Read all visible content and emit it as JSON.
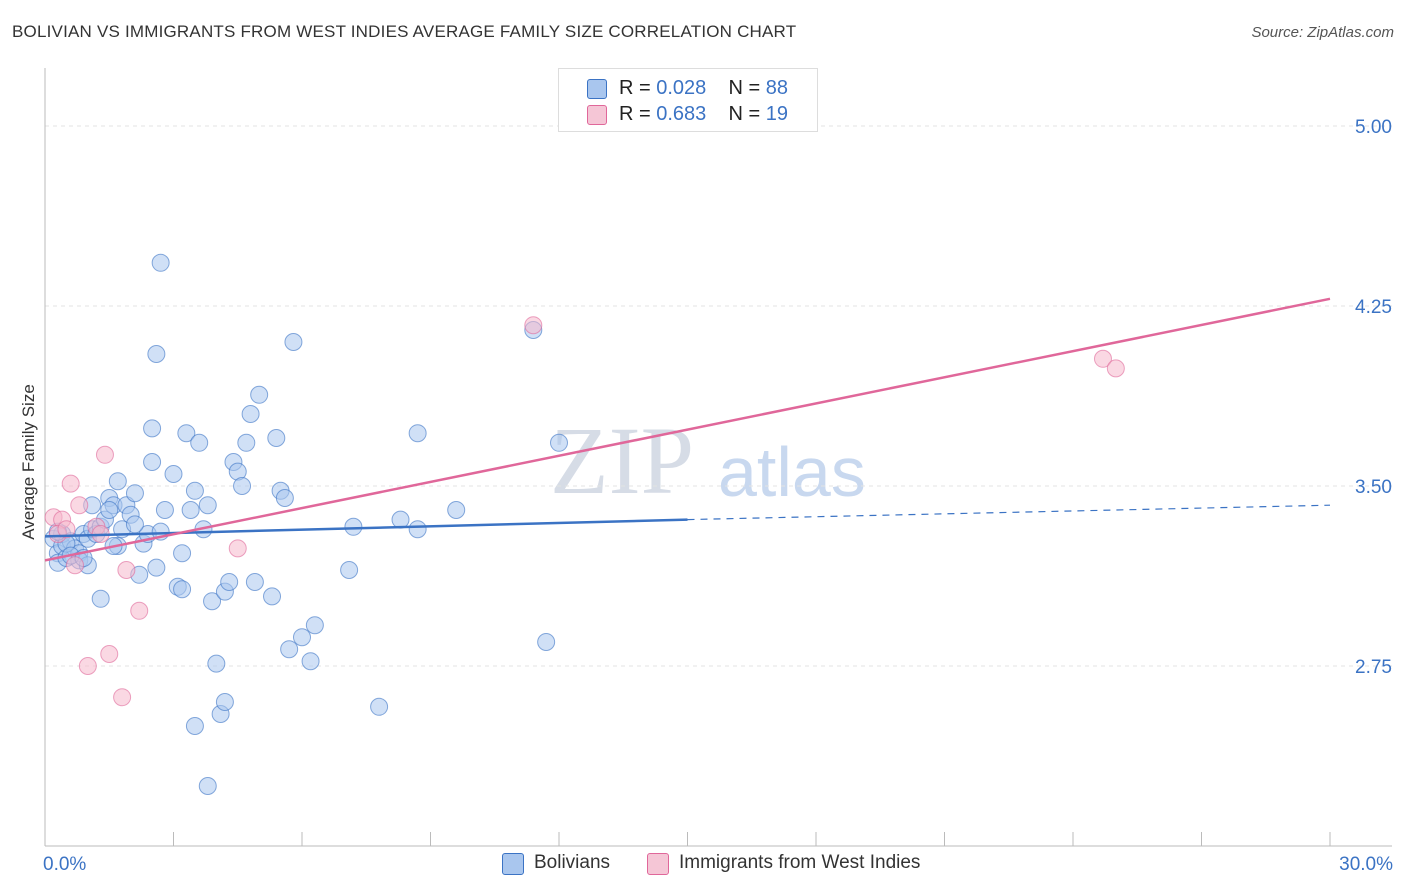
{
  "title": "BOLIVIAN VS IMMIGRANTS FROM WEST INDIES AVERAGE FAMILY SIZE CORRELATION CHART",
  "source": "Source: ZipAtlas.com",
  "watermark": {
    "zip": "ZIP",
    "atlas": "atlas"
  },
  "colors": {
    "blue": "#3b73c4",
    "blue_fill": "#a9c6ee",
    "pink": "#e0679a",
    "pink_fill": "#f5b8cc",
    "grid": "#e3e3e3"
  },
  "legend": {
    "rows": [
      {
        "r_label": "R =",
        "r_value": "0.028",
        "n_label": "N =",
        "n_value": "88"
      },
      {
        "r_label": "R =",
        "r_value": "0.683",
        "n_label": "N =",
        "n_value": "19"
      }
    ]
  },
  "bottom_legend": {
    "series1": "Bolivians",
    "series2": "Immigrants from West Indies"
  },
  "chart_data": {
    "type": "scatter",
    "ylabel": "Average Family Size",
    "xlabel": "",
    "xlim": [
      0,
      30
    ],
    "ylim": [
      2.0,
      5.2
    ],
    "x_tick_labels": {
      "left": "0.0%",
      "right": "30.0%"
    },
    "y_ticks": [
      {
        "value": 5.0,
        "label": "5.00"
      },
      {
        "value": 4.25,
        "label": "4.25"
      },
      {
        "value": 3.5,
        "label": "3.50"
      },
      {
        "value": 2.75,
        "label": "2.75"
      }
    ],
    "series": [
      {
        "name": "Bolivians",
        "points": [
          [
            0.2,
            3.28
          ],
          [
            0.3,
            3.22
          ],
          [
            0.4,
            3.25
          ],
          [
            0.3,
            3.18
          ],
          [
            0.5,
            3.2
          ],
          [
            0.4,
            3.3
          ],
          [
            0.6,
            3.27
          ],
          [
            0.7,
            3.24
          ],
          [
            0.8,
            3.22
          ],
          [
            0.5,
            3.26
          ],
          [
            0.9,
            3.3
          ],
          [
            1.0,
            3.28
          ],
          [
            1.1,
            3.32
          ],
          [
            0.8,
            3.19
          ],
          [
            1.2,
            3.3
          ],
          [
            1.0,
            3.17
          ],
          [
            1.1,
            3.42
          ],
          [
            1.3,
            3.33
          ],
          [
            1.4,
            3.36
          ],
          [
            1.5,
            3.45
          ],
          [
            1.6,
            3.42
          ],
          [
            1.7,
            3.52
          ],
          [
            1.8,
            3.32
          ],
          [
            1.7,
            3.25
          ],
          [
            1.9,
            3.42
          ],
          [
            2.0,
            3.38
          ],
          [
            2.1,
            3.47
          ],
          [
            2.2,
            3.13
          ],
          [
            2.3,
            3.26
          ],
          [
            2.4,
            3.3
          ],
          [
            2.5,
            3.6
          ],
          [
            2.6,
            3.16
          ],
          [
            2.7,
            3.31
          ],
          [
            2.8,
            3.4
          ],
          [
            3.0,
            3.55
          ],
          [
            3.1,
            3.08
          ],
          [
            3.2,
            3.07
          ],
          [
            3.2,
            3.22
          ],
          [
            3.3,
            3.72
          ],
          [
            3.4,
            3.4
          ],
          [
            3.5,
            3.48
          ],
          [
            3.6,
            3.68
          ],
          [
            3.7,
            3.32
          ],
          [
            3.8,
            3.42
          ],
          [
            3.9,
            3.02
          ],
          [
            4.0,
            2.76
          ],
          [
            4.2,
            3.06
          ],
          [
            4.3,
            3.1
          ],
          [
            4.4,
            3.6
          ],
          [
            4.5,
            3.56
          ],
          [
            4.6,
            3.5
          ],
          [
            4.7,
            3.68
          ],
          [
            4.8,
            3.8
          ],
          [
            4.9,
            3.1
          ],
          [
            5.0,
            3.88
          ],
          [
            5.3,
            3.04
          ],
          [
            5.4,
            3.7
          ],
          [
            5.5,
            3.48
          ],
          [
            5.6,
            3.45
          ],
          [
            5.7,
            2.82
          ],
          [
            6.0,
            2.87
          ],
          [
            6.2,
            2.77
          ],
          [
            6.3,
            2.92
          ],
          [
            7.2,
            3.33
          ],
          [
            7.1,
            3.15
          ],
          [
            7.8,
            2.58
          ],
          [
            8.3,
            3.36
          ],
          [
            8.7,
            3.72
          ],
          [
            8.7,
            3.32
          ],
          [
            9.6,
            3.4
          ],
          [
            12.0,
            3.68
          ],
          [
            11.7,
            2.85
          ],
          [
            2.5,
            3.74
          ],
          [
            2.6,
            4.05
          ],
          [
            2.7,
            4.43
          ],
          [
            3.5,
            2.5
          ],
          [
            3.8,
            2.25
          ],
          [
            4.1,
            2.55
          ],
          [
            4.2,
            2.6
          ],
          [
            5.8,
            4.1
          ],
          [
            11.4,
            4.15
          ],
          [
            1.3,
            3.03
          ],
          [
            1.6,
            3.25
          ],
          [
            0.6,
            3.21
          ],
          [
            0.3,
            3.31
          ],
          [
            0.9,
            3.2
          ],
          [
            2.1,
            3.34
          ],
          [
            1.5,
            3.4
          ]
        ],
        "trend": {
          "x0": 0.0,
          "y0": 3.29,
          "x1": 15.0,
          "y1": 3.36,
          "dash_to_x": 30.0,
          "dash_to_y": 3.42
        }
      },
      {
        "name": "Immigrants from West Indies",
        "points": [
          [
            0.2,
            3.37
          ],
          [
            0.4,
            3.36
          ],
          [
            0.3,
            3.3
          ],
          [
            0.6,
            3.51
          ],
          [
            0.7,
            3.17
          ],
          [
            0.8,
            3.42
          ],
          [
            1.0,
            2.75
          ],
          [
            1.2,
            3.33
          ],
          [
            1.4,
            3.63
          ],
          [
            1.5,
            2.8
          ],
          [
            1.8,
            2.62
          ],
          [
            1.9,
            3.15
          ],
          [
            2.2,
            2.98
          ],
          [
            4.5,
            3.24
          ],
          [
            11.4,
            4.17
          ],
          [
            24.7,
            4.03
          ],
          [
            25.0,
            3.99
          ],
          [
            0.5,
            3.32
          ],
          [
            1.3,
            3.3
          ]
        ],
        "trend": {
          "x0": 0.0,
          "y0": 3.19,
          "x1": 30.0,
          "y1": 4.28
        }
      }
    ]
  }
}
